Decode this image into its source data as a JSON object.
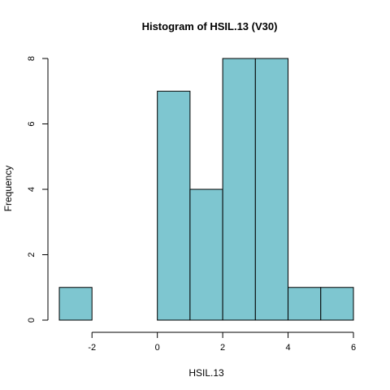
{
  "chart_data": {
    "type": "bar",
    "subtype": "histogram",
    "title": "Histogram of HSIL.13 (V30)",
    "xlabel": "HSIL.13",
    "ylabel": "Frequency",
    "bins": [
      {
        "start": -3,
        "end": -2,
        "count": 1
      },
      {
        "start": -2,
        "end": -1,
        "count": 0
      },
      {
        "start": -1,
        "end": 0,
        "count": 0
      },
      {
        "start": 0,
        "end": 1,
        "count": 7
      },
      {
        "start": 1,
        "end": 2,
        "count": 4
      },
      {
        "start": 2,
        "end": 3,
        "count": 8
      },
      {
        "start": 3,
        "end": 4,
        "count": 8
      },
      {
        "start": 4,
        "end": 5,
        "count": 1
      },
      {
        "start": 5,
        "end": 6,
        "count": 1
      }
    ],
    "xticks": [
      -2,
      0,
      2,
      4,
      6
    ],
    "yticks": [
      0,
      2,
      4,
      6,
      8
    ],
    "xlim": [
      -3,
      6
    ],
    "ylim": [
      0,
      8
    ],
    "grid": false,
    "bar_color": "#7ec6d0",
    "edge_color": "#000000"
  }
}
